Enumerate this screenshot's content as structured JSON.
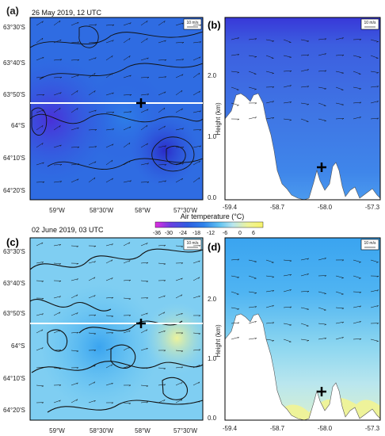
{
  "chart_data": [
    {
      "panel": "(a)",
      "type": "heatmap",
      "title": "26 May 2019, 12 UTC",
      "x_ticks": [
        "59°W",
        "58°30'W",
        "58°W",
        "57°30'W"
      ],
      "y_ticks": [
        "63°30'S",
        "63°40'S",
        "63°50'S",
        "64°S",
        "64°10'S",
        "64°20'S"
      ],
      "wind_reference": "10 m/s",
      "marker": {
        "lon": "58°W",
        "lat": "63°50'S"
      }
    },
    {
      "panel": "(b)",
      "type": "heatmap",
      "ylabel": "Height (km)",
      "x_ticks": [
        "-59.4",
        "-58.7",
        "-58.0",
        "-57.3"
      ],
      "y_ticks": [
        "0.0",
        "1.0",
        "2.0"
      ],
      "ylim": [
        0,
        2.8
      ],
      "xlim": [
        -59.4,
        -57.3
      ],
      "wind_reference": "10 m/s",
      "marker": {
        "x": -58.0,
        "y": 0.5
      }
    },
    {
      "panel": "(c)",
      "type": "heatmap",
      "title": "02 June 2019, 03 UTC",
      "x_ticks": [
        "59°W",
        "58°30'W",
        "58°W",
        "57°30'W"
      ],
      "y_ticks": [
        "63°30'S",
        "63°40'S",
        "63°50'S",
        "64°S",
        "64°10'S",
        "64°20'S"
      ],
      "wind_reference": "10 m/s",
      "marker": {
        "lon": "58°W",
        "lat": "63°50'S"
      }
    },
    {
      "panel": "(d)",
      "type": "heatmap",
      "ylabel": "Height (km)",
      "x_ticks": [
        "-59.4",
        "-58.7",
        "-58.0",
        "-57.3"
      ],
      "y_ticks": [
        "0.0",
        "1.0",
        "2.0"
      ],
      "ylim": [
        0,
        2.8
      ],
      "xlim": [
        -59.4,
        -57.3
      ],
      "wind_reference": "10 m/s",
      "marker": {
        "x": -58.0,
        "y": 0.5
      }
    }
  ],
  "colorbar": {
    "title": "Air temperature (°C)",
    "ticks": [
      "-36",
      "-30",
      "-24",
      "-18",
      "-12",
      "-6",
      "0",
      "6"
    ],
    "colors": [
      "#e02ee0",
      "#b04ae8",
      "#6a3fe0",
      "#3b3fd8",
      "#2f5de0",
      "#2f82ea",
      "#3aa4f0",
      "#62c4f2",
      "#8ed7f0",
      "#b9e6ee",
      "#d7f0d0",
      "#eef39a",
      "#f7f36a"
    ]
  },
  "labels": {
    "a": "(a)",
    "b": "(b)",
    "c": "(c)",
    "d": "(d)",
    "date_top": "26 May 2019, 12 UTC",
    "date_bottom": "02 June 2019, 03 UTC"
  }
}
